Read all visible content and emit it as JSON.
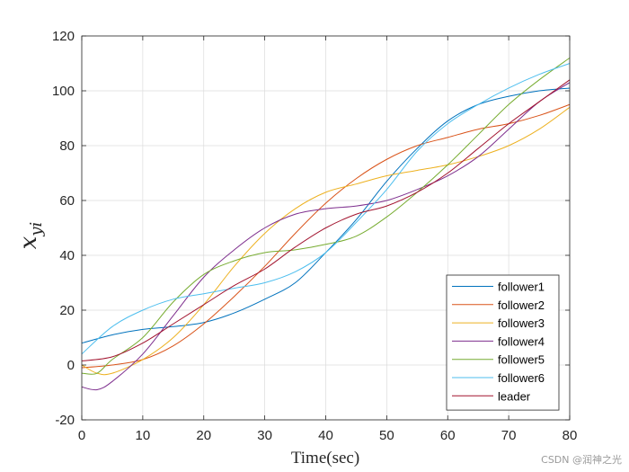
{
  "chart_data": {
    "type": "line",
    "title": "",
    "xlabel": "Time(sec)",
    "ylabel_base": "x",
    "ylabel_sub": "yi",
    "xlim": [
      0,
      80
    ],
    "ylim": [
      -20,
      120
    ],
    "xticks": [
      0,
      10,
      20,
      30,
      40,
      50,
      60,
      70,
      80
    ],
    "yticks": [
      -20,
      0,
      20,
      40,
      60,
      80,
      100,
      120
    ],
    "grid": true,
    "legend_position": "bottom-right",
    "series": [
      {
        "name": "follower1",
        "color": "#0072BD",
        "x": [
          0,
          5,
          10,
          15,
          20,
          25,
          30,
          35,
          40,
          45,
          50,
          55,
          60,
          65,
          70,
          75,
          80
        ],
        "y": [
          8,
          11,
          13,
          14,
          15.5,
          19,
          24,
          30,
          41,
          53,
          67,
          79,
          89,
          95,
          98,
          100,
          101
        ]
      },
      {
        "name": "follower2",
        "color": "#D95319",
        "x": [
          0,
          5,
          10,
          15,
          20,
          25,
          30,
          35,
          40,
          45,
          50,
          55,
          60,
          65,
          70,
          75,
          80
        ],
        "y": [
          -1,
          0,
          2,
          7,
          15,
          25,
          36,
          48,
          59,
          68,
          75,
          80,
          83,
          86,
          88,
          91,
          95
        ]
      },
      {
        "name": "follower3",
        "color": "#EDB120",
        "x": [
          0,
          2.5,
          5,
          10,
          15,
          20,
          25,
          30,
          35,
          40,
          45,
          50,
          55,
          60,
          65,
          70,
          75,
          80
        ],
        "y": [
          0,
          -3,
          -3,
          2,
          10,
          22,
          36,
          48,
          57,
          63,
          66,
          69,
          71,
          73,
          76,
          80,
          86,
          94
        ]
      },
      {
        "name": "follower4",
        "color": "#7E2F8E",
        "x": [
          0,
          2.5,
          5,
          10,
          15,
          20,
          25,
          30,
          35,
          40,
          45,
          50,
          55,
          60,
          65,
          70,
          75,
          80
        ],
        "y": [
          -8,
          -9,
          -6,
          4,
          18,
          32,
          42,
          50,
          55,
          57,
          58,
          60,
          64,
          69,
          76,
          86,
          96,
          103
        ]
      },
      {
        "name": "follower5",
        "color": "#77AC30",
        "x": [
          0,
          2.5,
          5,
          10,
          15,
          20,
          25,
          30,
          35,
          40,
          45,
          50,
          55,
          60,
          65,
          70,
          75,
          80
        ],
        "y": [
          -3,
          -3,
          2,
          10,
          23,
          33,
          38,
          41,
          42,
          44,
          47,
          54,
          63,
          73,
          84,
          95,
          104,
          112
        ]
      },
      {
        "name": "follower6",
        "color": "#4DBEEE",
        "x": [
          0,
          5,
          10,
          15,
          20,
          25,
          30,
          35,
          40,
          45,
          50,
          55,
          60,
          65,
          70,
          75,
          80
        ],
        "y": [
          4,
          14,
          20,
          24,
          26,
          28,
          30,
          34,
          41,
          52,
          64,
          78,
          88,
          95,
          101,
          106,
          110
        ]
      },
      {
        "name": "leader",
        "color": "#A2142F",
        "x": [
          0,
          5,
          10,
          15,
          20,
          25,
          30,
          35,
          40,
          45,
          50,
          55,
          60,
          65,
          70,
          75,
          80
        ],
        "y": [
          1.5,
          3,
          8,
          15,
          22,
          29,
          35,
          43,
          50,
          55,
          58,
          63,
          70,
          79,
          88,
          96,
          104
        ]
      }
    ]
  },
  "watermark": "CSDN @润神之光"
}
